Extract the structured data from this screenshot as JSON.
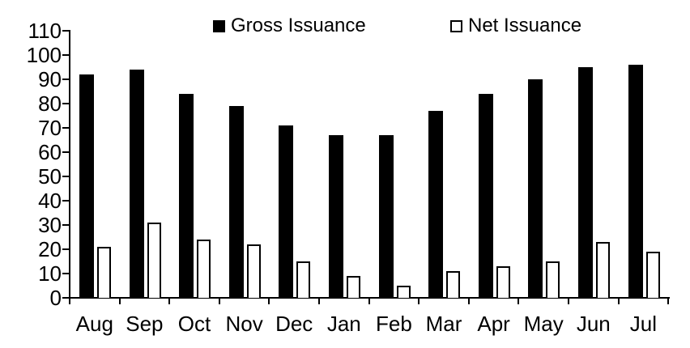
{
  "chart_data": {
    "type": "bar",
    "title": "",
    "xlabel": "",
    "ylabel": "",
    "categories": [
      "Aug",
      "Sep",
      "Oct",
      "Nov",
      "Dec",
      "Jan",
      "Feb",
      "Mar",
      "Apr",
      "May",
      "Jun",
      "Jul"
    ],
    "series": [
      {
        "name": "Gross Issuance",
        "style": "filled",
        "fill": "#000000",
        "values": [
          92,
          94,
          84,
          79,
          71,
          67,
          67,
          77,
          84,
          90,
          95,
          96
        ]
      },
      {
        "name": "Net Issuance",
        "style": "hollow",
        "fill": "#ffffff",
        "stroke": "#000000",
        "values": [
          21,
          31,
          24,
          22,
          15,
          9,
          5,
          11,
          13,
          15,
          23,
          19
        ]
      }
    ],
    "ylim": [
      0,
      110
    ],
    "ytick_step": 10,
    "yticks": [
      0,
      10,
      20,
      30,
      40,
      50,
      60,
      70,
      80,
      90,
      100,
      110
    ],
    "grid": false,
    "legend_position": "top",
    "axis_color": "#000000",
    "background_color": "#ffffff"
  }
}
